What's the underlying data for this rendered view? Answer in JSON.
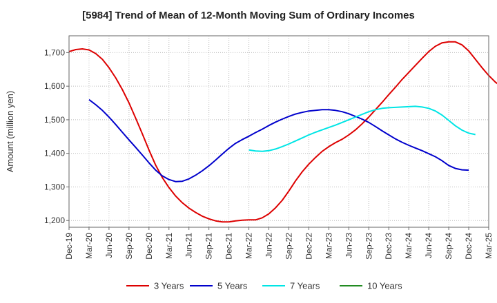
{
  "chart_data": {
    "type": "line",
    "title": "[5984]  Trend of Mean of 12-Month Moving Sum of Ordinary Incomes",
    "xlabel": "",
    "ylabel": "Amount (million yen)",
    "ylim": [
      1180,
      1750
    ],
    "y_ticks": [
      1200,
      1300,
      1400,
      1500,
      1600,
      1700
    ],
    "y_tick_labels": [
      "1,200",
      "1,300",
      "1,400",
      "1,500",
      "1,600",
      "1,700"
    ],
    "x_ticks": [
      "Dec-19",
      "Mar-20",
      "Jun-20",
      "Sep-20",
      "Dec-20",
      "Mar-21",
      "Jun-21",
      "Sep-21",
      "Dec-21",
      "Mar-22",
      "Jun-22",
      "Sep-22",
      "Dec-22",
      "Mar-23",
      "Jun-23",
      "Sep-23",
      "Dec-23",
      "Mar-24",
      "Jun-24",
      "Sep-24",
      "Dec-24",
      "Mar-25"
    ],
    "series": [
      {
        "name": "3 Years",
        "color": "#dd0000",
        "start_index": 0,
        "values": [
          1703,
          1709,
          1711,
          1708,
          1697,
          1680,
          1655,
          1625,
          1590,
          1550,
          1505,
          1458,
          1410,
          1365,
          1328,
          1298,
          1273,
          1253,
          1237,
          1224,
          1213,
          1205,
          1199,
          1196,
          1196,
          1199,
          1201,
          1202,
          1202,
          1208,
          1220,
          1238,
          1260,
          1288,
          1318,
          1345,
          1368,
          1388,
          1406,
          1420,
          1432,
          1442,
          1455,
          1470,
          1488,
          1508,
          1530,
          1552,
          1575,
          1597,
          1620,
          1641,
          1662,
          1683,
          1703,
          1719,
          1729,
          1732,
          1732,
          1723,
          1705,
          1680,
          1655,
          1632,
          1612,
          1597
        ]
      },
      {
        "name": "5 Years",
        "color": "#0000cc",
        "start_index": 3,
        "values": [
          1560,
          1545,
          1528,
          1508,
          1486,
          1463,
          1440,
          1418,
          1395,
          1372,
          1350,
          1333,
          1322,
          1316,
          1317,
          1324,
          1335,
          1348,
          1363,
          1380,
          1398,
          1415,
          1430,
          1441,
          1451,
          1462,
          1472,
          1483,
          1493,
          1502,
          1510,
          1517,
          1522,
          1526,
          1528,
          1530,
          1530,
          1528,
          1524,
          1518,
          1510,
          1502,
          1492,
          1480,
          1467,
          1455,
          1443,
          1433,
          1424,
          1416,
          1408,
          1399,
          1390,
          1378,
          1364,
          1355,
          1351,
          1350
        ]
      },
      {
        "name": "7 Years",
        "color": "#00e5e5",
        "start_index": 27,
        "values": [
          1410,
          1407,
          1406,
          1408,
          1413,
          1420,
          1428,
          1437,
          1446,
          1455,
          1463,
          1470,
          1477,
          1484,
          1492,
          1500,
          1508,
          1516,
          1524,
          1530,
          1534,
          1536,
          1537,
          1538,
          1539,
          1540,
          1538,
          1534,
          1526,
          1514,
          1498,
          1482,
          1469,
          1460,
          1456
        ]
      },
      {
        "name": "10 Years",
        "color": "#228b22",
        "start_index": 0,
        "values": []
      }
    ],
    "legend_position": "bottom",
    "grid": true
  }
}
